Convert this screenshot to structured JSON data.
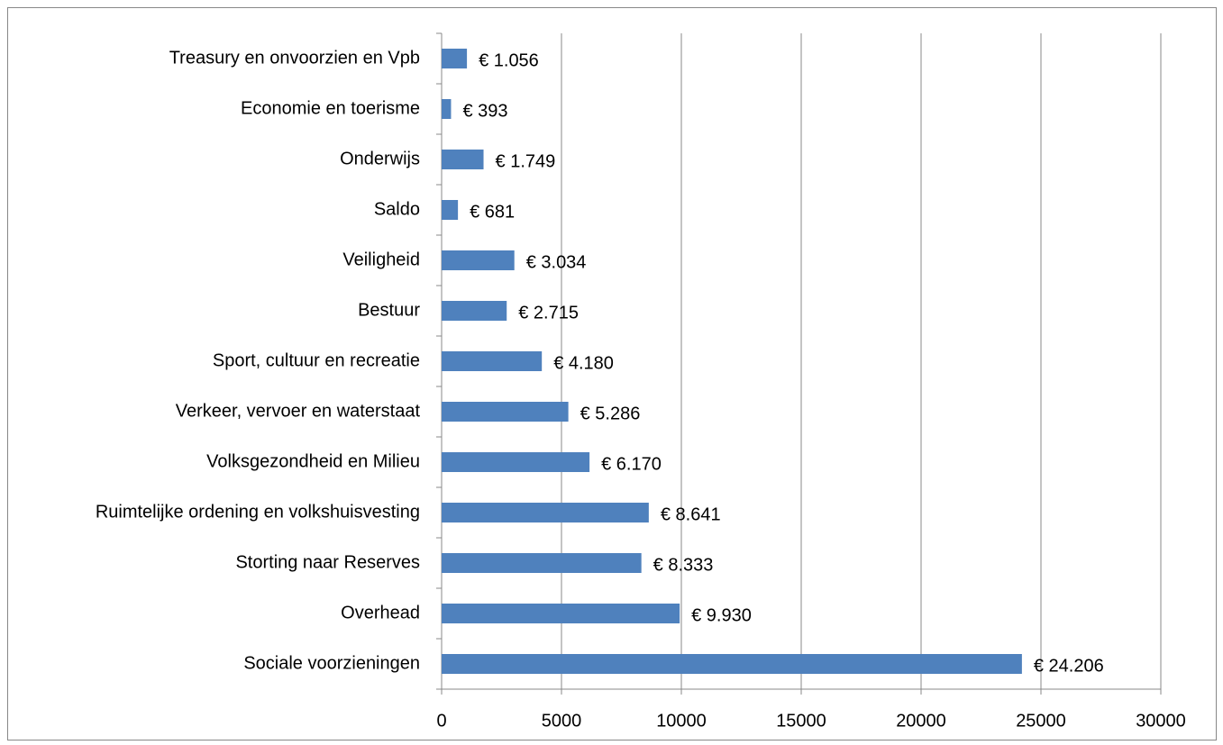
{
  "chart_data": {
    "type": "bar",
    "orientation": "horizontal",
    "categories": [
      "Treasury en onvoorzien en Vpb",
      "Economie en toerisme",
      "Onderwijs",
      "Saldo",
      "Veiligheid",
      "Bestuur",
      "Sport, cultuur en recreatie",
      "Verkeer, vervoer en waterstaat",
      "Volksgezondheid en Milieu",
      "Ruimtelijke ordening en volkshuisvesting",
      "Storting naar Reserves",
      "Overhead",
      "Sociale voorzieningen"
    ],
    "values": [
      1056,
      393,
      1749,
      681,
      3034,
      2715,
      4180,
      5286,
      6170,
      8641,
      8333,
      9930,
      24206
    ],
    "value_labels": [
      "€ 1.056",
      "€ 393",
      "€ 1.749",
      "€ 681",
      "€ 3.034",
      "€ 2.715",
      "€ 4.180",
      "€ 5.286",
      "€ 6.170",
      "€ 8.641",
      "€ 8.333",
      "€ 9.930",
      "€ 24.206"
    ],
    "color": "#4f81bd",
    "xlim": [
      0,
      30000
    ],
    "xticks": [
      0,
      5000,
      10000,
      15000,
      20000,
      25000,
      30000
    ],
    "grid": true
  }
}
